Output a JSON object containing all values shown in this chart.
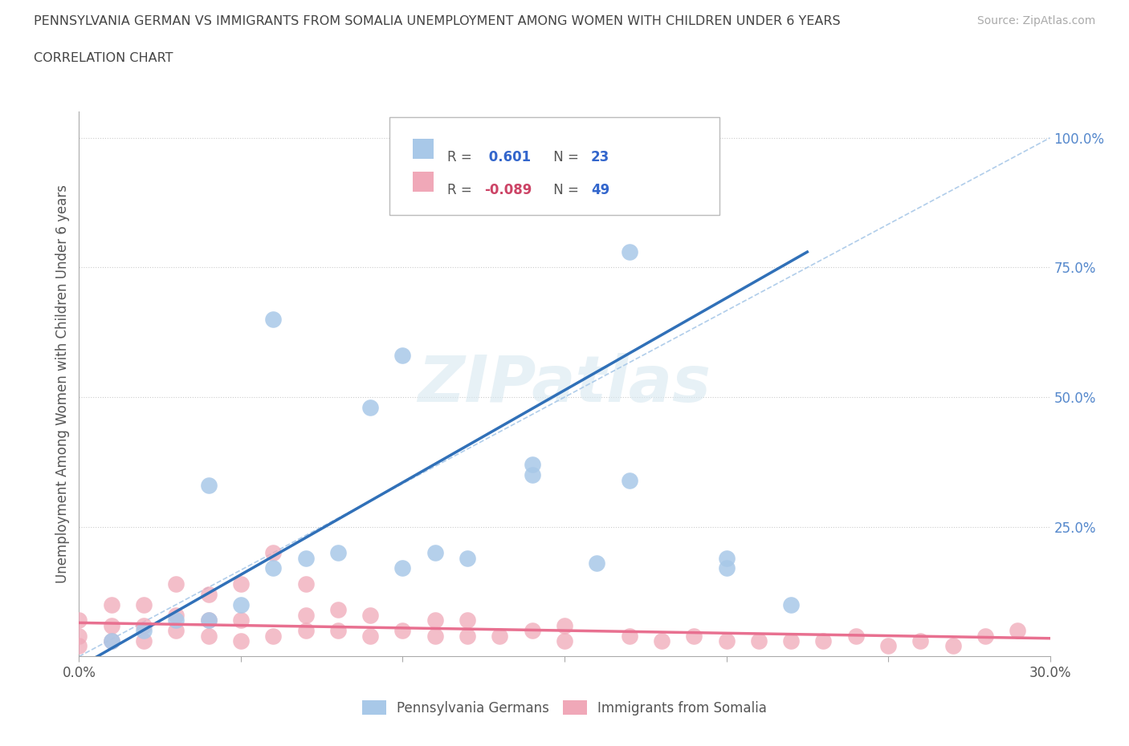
{
  "title_line1": "PENNSYLVANIA GERMAN VS IMMIGRANTS FROM SOMALIA UNEMPLOYMENT AMONG WOMEN WITH CHILDREN UNDER 6 YEARS",
  "title_line2": "CORRELATION CHART",
  "source": "Source: ZipAtlas.com",
  "ylabel": "Unemployment Among Women with Children Under 6 years",
  "xlim": [
    0.0,
    0.3
  ],
  "ylim": [
    0.0,
    1.05
  ],
  "xticks": [
    0.0,
    0.05,
    0.1,
    0.15,
    0.2,
    0.25,
    0.3
  ],
  "xtick_labels": [
    "0.0%",
    "",
    "",
    "",
    "",
    "",
    "30.0%"
  ],
  "ytick_positions": [
    0.25,
    0.5,
    0.75,
    1.0
  ],
  "ytick_labels": [
    "25.0%",
    "50.0%",
    "75.0%",
    "100.0%"
  ],
  "watermark": "ZIPatlas",
  "blue_color": "#a8c8e8",
  "pink_color": "#f0a8b8",
  "blue_line_color": "#3070b8",
  "pink_line_color": "#e87090",
  "diag_line_color": "#a8c8e8",
  "blue_scatter_x": [
    0.01,
    0.02,
    0.03,
    0.04,
    0.05,
    0.06,
    0.07,
    0.08,
    0.04,
    0.1,
    0.11,
    0.12,
    0.14,
    0.14,
    0.16,
    0.17,
    0.2,
    0.2,
    0.22,
    0.09,
    0.06,
    0.17,
    0.1
  ],
  "blue_scatter_y": [
    0.03,
    0.05,
    0.07,
    0.07,
    0.1,
    0.17,
    0.19,
    0.2,
    0.33,
    0.17,
    0.2,
    0.19,
    0.35,
    0.37,
    0.18,
    0.34,
    0.17,
    0.19,
    0.1,
    0.48,
    0.65,
    0.78,
    0.58
  ],
  "pink_scatter_x": [
    0.0,
    0.0,
    0.0,
    0.01,
    0.01,
    0.01,
    0.02,
    0.02,
    0.02,
    0.03,
    0.03,
    0.03,
    0.04,
    0.04,
    0.04,
    0.05,
    0.05,
    0.05,
    0.06,
    0.06,
    0.07,
    0.07,
    0.07,
    0.08,
    0.08,
    0.09,
    0.09,
    0.1,
    0.11,
    0.11,
    0.12,
    0.12,
    0.13,
    0.14,
    0.15,
    0.15,
    0.17,
    0.18,
    0.19,
    0.2,
    0.21,
    0.22,
    0.23,
    0.24,
    0.25,
    0.26,
    0.27,
    0.28,
    0.29
  ],
  "pink_scatter_y": [
    0.02,
    0.04,
    0.07,
    0.03,
    0.06,
    0.1,
    0.03,
    0.06,
    0.1,
    0.05,
    0.08,
    0.14,
    0.04,
    0.07,
    0.12,
    0.03,
    0.07,
    0.14,
    0.04,
    0.2,
    0.05,
    0.08,
    0.14,
    0.05,
    0.09,
    0.04,
    0.08,
    0.05,
    0.04,
    0.07,
    0.04,
    0.07,
    0.04,
    0.05,
    0.03,
    0.06,
    0.04,
    0.03,
    0.04,
    0.03,
    0.03,
    0.03,
    0.03,
    0.04,
    0.02,
    0.03,
    0.02,
    0.04,
    0.05
  ],
  "blue_line_x0": 0.0,
  "blue_line_y0": -0.02,
  "blue_line_x1": 0.225,
  "blue_line_y1": 0.78,
  "pink_line_x0": 0.0,
  "pink_line_y0": 0.065,
  "pink_line_x1": 0.3,
  "pink_line_y1": 0.035,
  "legend_items": [
    {
      "color": "#a8c8e8",
      "r_label": "R = ",
      "r_value": " 0.601",
      "n_label": " N = ",
      "n_value": "23"
    },
    {
      "color": "#f0a8b8",
      "r_label": "R = ",
      "r_value": "-0.089",
      "n_label": " N = ",
      "n_value": "49"
    }
  ],
  "bottom_legend": [
    "Pennsylvania Germans",
    "Immigrants from Somalia"
  ]
}
